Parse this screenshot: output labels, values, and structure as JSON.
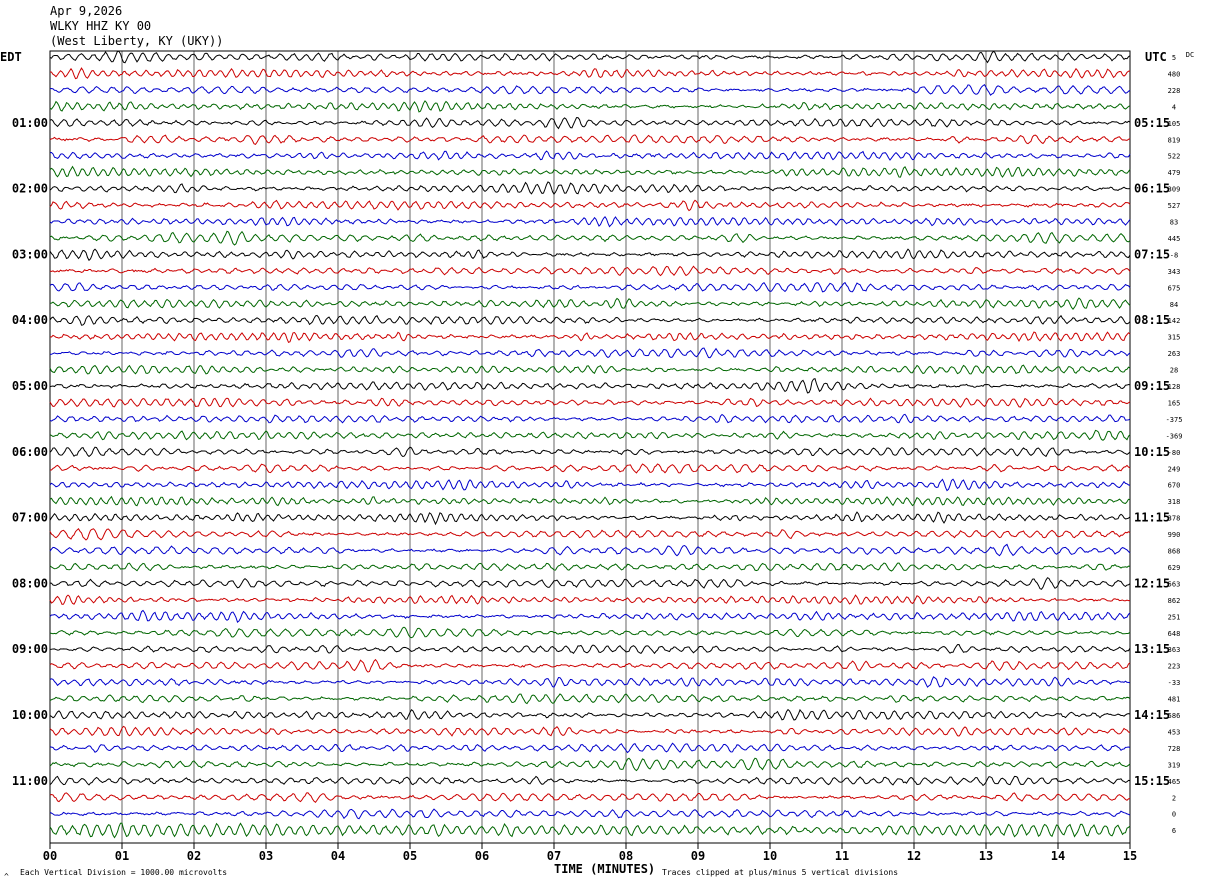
{
  "header": {
    "date": "Apr 9,2026",
    "station": "WLKY HHZ KY 00",
    "location": "(West Liberty, KY (UKY))"
  },
  "left_tz": "EDT",
  "right_tz": "UTC",
  "dc_label": "DC",
  "footer": {
    "scale_note": "Each Vertical Division = 1000.00 microvolts",
    "clip_note": "Traces clipped at plus/minus 5 vertical divisions",
    "corner_mark": "^"
  },
  "colors": {
    "trace_cycle": [
      "#000000",
      "#cc0000",
      "#0000cc",
      "#006600"
    ],
    "grid": "#000000"
  },
  "chart_data": {
    "type": "line",
    "title": "WLKY HHZ KY 00",
    "xlabel": "TIME (MINUTES)",
    "ylabel": "",
    "xlim": [
      0,
      15
    ],
    "x_ticks": [
      "00",
      "01",
      "02",
      "03",
      "04",
      "05",
      "06",
      "07",
      "08",
      "09",
      "10",
      "11",
      "12",
      "13",
      "14",
      "15"
    ],
    "left_hour_labels": [
      "01:00",
      "02:00",
      "03:00",
      "04:00",
      "05:00",
      "06:00",
      "07:00",
      "08:00",
      "09:00",
      "10:00",
      "11:00"
    ],
    "right_hour_labels": [
      "05:15",
      "06:15",
      "07:15",
      "08:15",
      "09:15",
      "10:15",
      "11:15",
      "12:15",
      "13:15",
      "14:15",
      "15:15"
    ],
    "trace_count": 48,
    "traces_per_hour": 4,
    "minutes_per_trace": 15,
    "dc_offsets": [
      "5",
      "480",
      "228",
      "4",
      "105",
      "819",
      "522",
      "479",
      "309",
      "527",
      "83",
      "445",
      "-8",
      "343",
      "675",
      "84",
      "142",
      "315",
      "263",
      "28",
      "128",
      "165",
      "-375",
      "-369",
      "-80",
      "249",
      "670",
      "318",
      "378",
      "990",
      "868",
      "629",
      "563",
      "862",
      "251",
      "648",
      "363",
      "223",
      "-33",
      "481",
      "586",
      "453",
      "728",
      "319",
      "465",
      "2",
      "0",
      "6"
    ]
  }
}
